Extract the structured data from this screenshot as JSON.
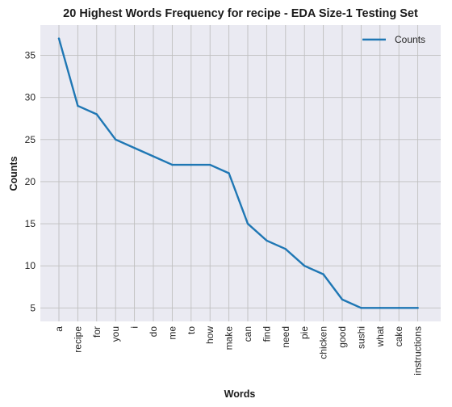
{
  "chart_data": {
    "type": "line",
    "title": "20 Highest Words Frequency for recipe - EDA Size-1 Testing Set",
    "xlabel": "Words",
    "ylabel": "Counts",
    "categories": [
      "a",
      "recipe",
      "for",
      "you",
      "i",
      "do",
      "me",
      "to",
      "how",
      "make",
      "can",
      "find",
      "need",
      "pie",
      "chicken",
      "good",
      "sushi",
      "what",
      "cake",
      "instructions"
    ],
    "series": [
      {
        "name": "Counts",
        "values": [
          37,
          29,
          28,
          25,
          24,
          23,
          22,
          22,
          22,
          21,
          15,
          13,
          12,
          10,
          9,
          6,
          5,
          5,
          5,
          5
        ],
        "color": "#1f77b4"
      }
    ],
    "yticks": [
      5,
      10,
      15,
      20,
      25,
      30,
      35
    ],
    "ylim": [
      3.4,
      38.6
    ],
    "grid": true,
    "legend": "top-right",
    "background": "#eaeaf2",
    "grid_color": "#bfbfbf"
  }
}
